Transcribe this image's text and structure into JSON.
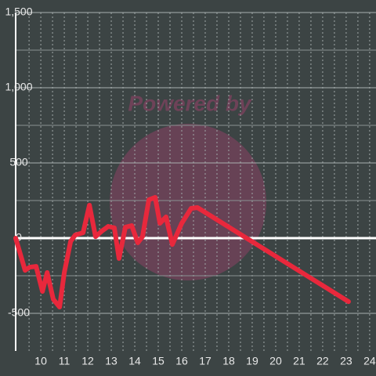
{
  "chart_data": {
    "type": "line",
    "watermark": "Powered by",
    "x": [
      8.93,
      9.33,
      9.53,
      9.8,
      10.07,
      10.27,
      10.53,
      10.8,
      11.0,
      11.27,
      11.47,
      11.8,
      12.07,
      12.33,
      12.6,
      12.87,
      13.13,
      13.33,
      13.6,
      13.87,
      14.13,
      14.33,
      14.6,
      14.87,
      15.07,
      15.33,
      15.6,
      16.0,
      16.4,
      16.67,
      23.1
    ],
    "values": [
      0,
      -214,
      -193,
      -188,
      -354,
      -229,
      -406,
      -458,
      -229,
      -21,
      21,
      36,
      219,
      10,
      47,
      78,
      68,
      -135,
      73,
      83,
      -31,
      10,
      255,
      271,
      99,
      141,
      -42,
      99,
      198,
      203,
      -422
    ],
    "color": "#e8283c",
    "xlim": [
      8.93,
      24.27
    ],
    "ylim": [
      -750,
      1500
    ],
    "xticks": [
      10,
      11,
      12,
      13,
      14,
      15,
      16,
      17,
      18,
      19,
      20,
      21,
      22,
      23,
      24
    ],
    "minor_xticks": [
      9.5,
      10.5,
      11.5,
      12.5,
      13.5,
      14.5,
      15.5,
      16.5,
      17.5,
      18.5,
      19.5,
      20.5,
      21.5,
      22.5,
      23.5
    ],
    "yticks": [
      {
        "value": 1500,
        "label": "1,500"
      },
      {
        "value": 1000,
        "label": "1,000"
      },
      500,
      0,
      -500
    ],
    "minor_yticks": [
      1250,
      750,
      250,
      -250
    ],
    "grid": true
  }
}
